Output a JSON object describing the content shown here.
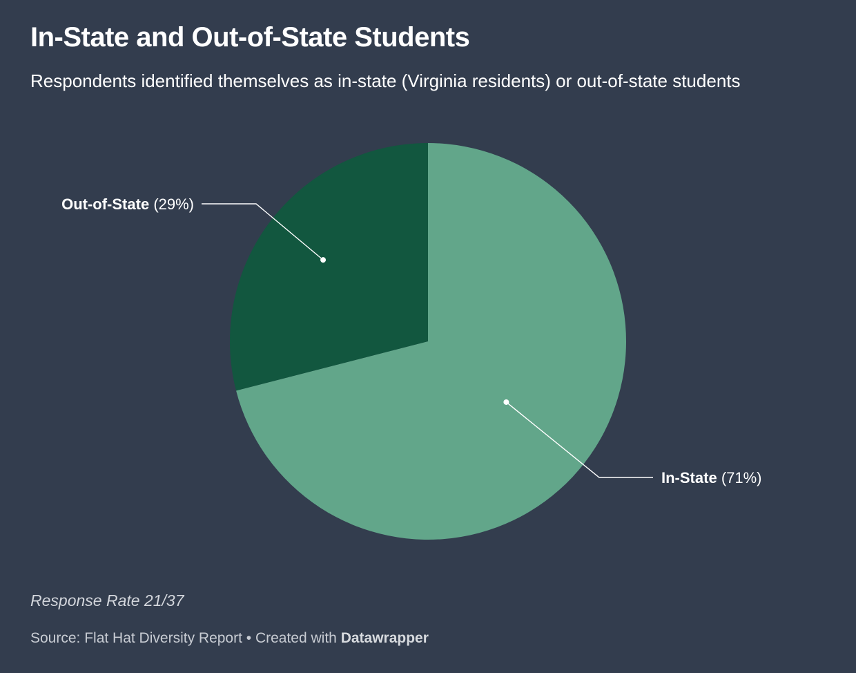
{
  "header": {
    "title": "In-State and Out-of-State Students",
    "subtitle": "Respondents identified themselves as in-state (Virginia residents) or out-of-state students"
  },
  "chart_data": {
    "type": "pie",
    "title": "In-State and Out-of-State Students",
    "subtitle": "Respondents identified themselves as in-state (Virginia residents) or out-of-state students",
    "slices": [
      {
        "label": "In-State",
        "value": 71,
        "value_label": "(71%)",
        "color": "#62a68a"
      },
      {
        "label": "Out-of-State",
        "value": 29,
        "value_label": "(29%)",
        "color": "#12573f"
      }
    ]
  },
  "notes": {
    "response_rate": "Response Rate 21/37"
  },
  "footer": {
    "source_prefix": "Source: Flat Hat Diversity Report • Created with",
    "created_with": "Datawrapper"
  },
  "colors": {
    "background": "#333d4e",
    "text": "#ffffff",
    "leader_line": "#ffffff"
  }
}
